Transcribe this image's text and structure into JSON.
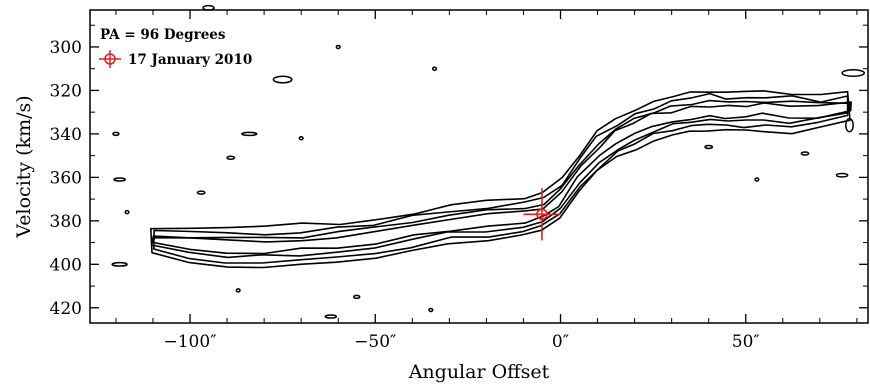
{
  "chart_data": {
    "type": "contour",
    "xlabel": "Angular Offset",
    "ylabel": "Velocity (km/s)",
    "xlim": [
      -127,
      83
    ],
    "ylim": [
      427,
      283
    ],
    "y_inverted": true,
    "x_ticks": [
      {
        "value": -100,
        "label": "−100″"
      },
      {
        "value": -50,
        "label": "−50″"
      },
      {
        "value": 0,
        "label": "0″"
      },
      {
        "value": 50,
        "label": "50″"
      }
    ],
    "y_ticks": [
      {
        "value": 300,
        "label": "300"
      },
      {
        "value": 320,
        "label": "320"
      },
      {
        "value": 340,
        "label": "340"
      },
      {
        "value": 360,
        "label": "360"
      },
      {
        "value": 380,
        "label": "380"
      },
      {
        "value": 400,
        "label": "400"
      },
      {
        "value": 420,
        "label": "420"
      }
    ],
    "legend": {
      "placement": "top-left",
      "title": "PA = 96 Degrees",
      "entry": "17 January 2010",
      "marker_color": "#e0201c"
    },
    "marker": {
      "x": -5,
      "y": 377,
      "x_err": 5,
      "y_err": 12
    },
    "contour_ridge": [
      {
        "x": -110,
        "y": 389
      },
      {
        "x": -100,
        "y": 391
      },
      {
        "x": -90,
        "y": 392
      },
      {
        "x": -80,
        "y": 392
      },
      {
        "x": -70,
        "y": 391
      },
      {
        "x": -60,
        "y": 390
      },
      {
        "x": -50,
        "y": 388
      },
      {
        "x": -40,
        "y": 385
      },
      {
        "x": -30,
        "y": 382
      },
      {
        "x": -20,
        "y": 380
      },
      {
        "x": -10,
        "y": 378
      },
      {
        "x": -5,
        "y": 376
      },
      {
        "x": 0,
        "y": 370
      },
      {
        "x": 5,
        "y": 358
      },
      {
        "x": 10,
        "y": 348
      },
      {
        "x": 15,
        "y": 342
      },
      {
        "x": 20,
        "y": 338
      },
      {
        "x": 25,
        "y": 334
      },
      {
        "x": 30,
        "y": 332
      },
      {
        "x": 35,
        "y": 330
      },
      {
        "x": 40,
        "y": 329
      },
      {
        "x": 45,
        "y": 330
      },
      {
        "x": 50,
        "y": 330
      },
      {
        "x": 55,
        "y": 329
      },
      {
        "x": 62,
        "y": 330
      },
      {
        "x": 70,
        "y": 330
      },
      {
        "x": 78,
        "y": 328
      }
    ],
    "contour_widths": [
      9,
      6.5,
      4.2,
      2.4
    ],
    "noise_contours": [
      {
        "x": -95,
        "y": 282,
        "rx": 1.5,
        "ry": 1
      },
      {
        "x": -60,
        "y": 300,
        "rx": 0.5,
        "ry": 0.5
      },
      {
        "x": -34,
        "y": 310,
        "rx": 0.5,
        "ry": 0.5
      },
      {
        "x": -75,
        "y": 315,
        "rx": 2.5,
        "ry": 1.5
      },
      {
        "x": -84,
        "y": 340,
        "rx": 2,
        "ry": 0.6
      },
      {
        "x": -89,
        "y": 351,
        "rx": 1,
        "ry": 0.6
      },
      {
        "x": -119,
        "y": 361,
        "rx": 1.5,
        "ry": 0.6
      },
      {
        "x": -97,
        "y": 367,
        "rx": 1,
        "ry": 0.6
      },
      {
        "x": -117,
        "y": 376,
        "rx": 0.5,
        "ry": 0.5
      },
      {
        "x": -119,
        "y": 400,
        "rx": 2,
        "ry": 0.8
      },
      {
        "x": -87,
        "y": 412,
        "rx": 0.5,
        "ry": 0.5
      },
      {
        "x": -55,
        "y": 415,
        "rx": 0.8,
        "ry": 0.6
      },
      {
        "x": -62,
        "y": 424,
        "rx": 1.5,
        "ry": 0.6
      },
      {
        "x": -35,
        "y": 421,
        "rx": 0.5,
        "ry": 0.5
      },
      {
        "x": 40,
        "y": 346,
        "rx": 1,
        "ry": 0.6
      },
      {
        "x": 53,
        "y": 361,
        "rx": 0.5,
        "ry": 0.5
      },
      {
        "x": 66,
        "y": 349,
        "rx": 1,
        "ry": 0.6
      },
      {
        "x": 76,
        "y": 359,
        "rx": 1.5,
        "ry": 0.8
      },
      {
        "x": 79,
        "y": 312,
        "rx": 3,
        "ry": 1.5
      },
      {
        "x": -120,
        "y": 340,
        "rx": 0.8,
        "ry": 0.5
      },
      {
        "x": -70,
        "y": 342,
        "rx": 0.5,
        "ry": 0.5
      },
      {
        "x": 78,
        "y": 336,
        "rx": 1,
        "ry": 3
      }
    ]
  }
}
